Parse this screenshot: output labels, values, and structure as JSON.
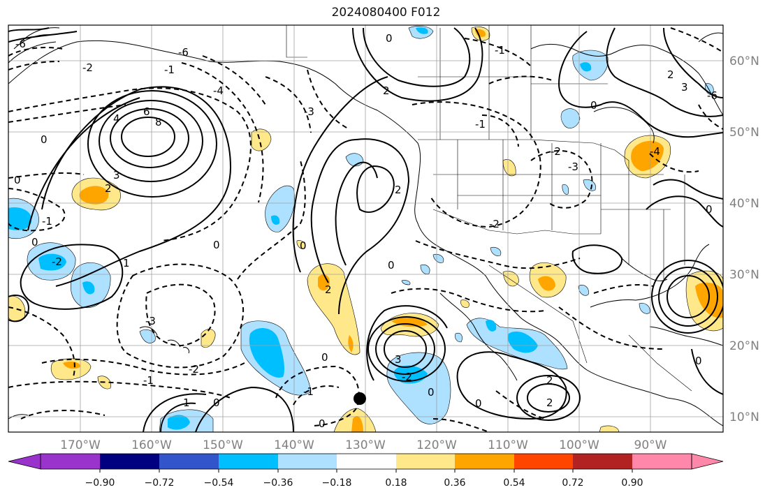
{
  "title": "2024080400 F012",
  "longitude_labels": [
    "170°W",
    "160°W",
    "150°W",
    "140°W",
    "130°W",
    "120°W",
    "110°W",
    "100°W",
    "90°W"
  ],
  "latitude_labels": [
    "60°N",
    "50°N",
    "40°N",
    "30°N",
    "20°N",
    "10°N"
  ],
  "colorbar": {
    "colors": [
      "#9933cc",
      "#000080",
      "#3355cc",
      "#00bfff",
      "#aee0ff",
      "#ffffff",
      "#ffe88a",
      "#ffa500",
      "#ff4500",
      "#b22222",
      "#ff88aa"
    ],
    "tick_labels": [
      "−0.90",
      "−0.72",
      "−0.54",
      "−0.36",
      "−0.18",
      "0.18",
      "0.36",
      "0.54",
      "0.72",
      "0.90"
    ]
  },
  "contour_labels": [
    "6",
    "8",
    "4",
    "3",
    "2",
    "1",
    "0",
    "-1",
    "-2",
    "-3",
    "-4",
    "-6"
  ],
  "marker": {
    "color": "#000000"
  }
}
